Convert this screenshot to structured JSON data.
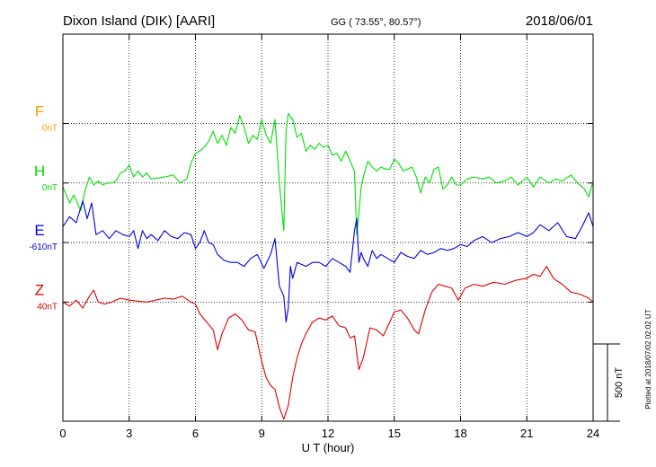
{
  "header": {
    "station": "Dixon Island (DIK)  [AARI]",
    "coords": "GG ( 73.55°,  80.57°)",
    "date": "2018/06/01"
  },
  "footer": {
    "plotted_note": "Plotted at 2018/07/02 02:02 UT"
  },
  "colors": {
    "F": "#f5a000",
    "H": "#00e000",
    "E": "#0000e0",
    "Z": "#e00000",
    "axis": "#000000",
    "grid": "#000000"
  },
  "chart_data": {
    "type": "line",
    "title": "Dixon Island (DIK)  [AARI]",
    "xlabel": "U T (hour)",
    "xlim": [
      0,
      24
    ],
    "xticks": [
      0,
      3,
      6,
      9,
      12,
      15,
      18,
      21,
      24
    ],
    "xtick_labels": [
      "0",
      "3",
      "6",
      "9",
      "12",
      "15",
      "18",
      "21",
      "24"
    ],
    "grid": true,
    "scale_bar_label": "500 nT",
    "scale_bar_nT": 500,
    "ylim": [
      -400,
      1550
    ],
    "series": [
      {
        "name": "F",
        "baseline_label": "0nT",
        "baseline_nT": 1100,
        "x": [],
        "y": []
      },
      {
        "name": "H",
        "baseline_label": "0nT",
        "baseline_nT": 800,
        "x": [
          0,
          0.3,
          0.5,
          0.8,
          1.0,
          1.2,
          1.4,
          1.6,
          1.8,
          2.0,
          2.2,
          2.4,
          2.6,
          2.8,
          3.0,
          3.2,
          3.4,
          3.6,
          3.8,
          4.0,
          4.3,
          4.6,
          5.0,
          5.3,
          5.6,
          5.8,
          6.0,
          6.2,
          6.4,
          6.6,
          6.8,
          7.0,
          7.2,
          7.4,
          7.6,
          7.8,
          8.0,
          8.2,
          8.4,
          8.6,
          8.8,
          9.0,
          9.2,
          9.4,
          9.6,
          9.8,
          10.0,
          10.1,
          10.2,
          10.4,
          10.6,
          10.8,
          11.0,
          11.2,
          11.4,
          11.6,
          11.8,
          12.0,
          12.2,
          12.4,
          12.6,
          12.8,
          13.0,
          13.2,
          13.3,
          13.4,
          13.5,
          13.6,
          13.8,
          14.0,
          14.2,
          14.4,
          14.6,
          14.8,
          15.0,
          15.2,
          15.4,
          15.6,
          15.8,
          16.0,
          16.2,
          16.4,
          16.6,
          16.8,
          17.0,
          17.2,
          17.4,
          17.6,
          17.8,
          18.0,
          18.3,
          18.6,
          19.0,
          19.3,
          19.6,
          20.0,
          20.3,
          20.6,
          21.0,
          21.3,
          21.6,
          22.0,
          22.3,
          22.6,
          23.0,
          23.3,
          23.6,
          23.8,
          24.0
        ],
        "y": [
          780,
          700,
          740,
          660,
          760,
          830,
          790,
          810,
          790,
          800,
          800,
          810,
          850,
          860,
          890,
          830,
          860,
          830,
          850,
          820,
          825,
          830,
          840,
          800,
          820,
          900,
          950,
          960,
          980,
          1010,
          1060,
          1000,
          1040,
          990,
          1080,
          1050,
          1140,
          1080,
          1000,
          1040,
          1020,
          1120,
          1040,
          1000,
          1120,
          800,
          560,
          1060,
          1150,
          1120,
          1030,
          1050,
          960,
          990,
          970,
          1000,
          980,
          990,
          940,
          950,
          910,
          960,
          910,
          860,
          540,
          650,
          780,
          830,
          910,
          880,
          860,
          880,
          870,
          870,
          920,
          900,
          860,
          870,
          880,
          830,
          750,
          830,
          800,
          870,
          880,
          770,
          790,
          830,
          790,
          790,
          820,
          830,
          820,
          830,
          800,
          810,
          830,
          790,
          830,
          780,
          830,
          800,
          820,
          810,
          840,
          800,
          770,
          730,
          810
        ]
      },
      {
        "name": "E",
        "baseline_label": "-610nT",
        "baseline_nT": 500,
        "x": [
          0,
          0.3,
          0.6,
          0.9,
          1.1,
          1.3,
          1.5,
          1.8,
          2.1,
          2.4,
          2.7,
          3.0,
          3.2,
          3.4,
          3.6,
          3.8,
          4.0,
          4.3,
          4.6,
          4.9,
          5.2,
          5.5,
          5.8,
          6.0,
          6.2,
          6.4,
          6.6,
          6.8,
          7.0,
          7.3,
          7.6,
          7.9,
          8.2,
          8.5,
          8.8,
          9.1,
          9.4,
          9.6,
          9.8,
          10.0,
          10.1,
          10.2,
          10.3,
          10.4,
          10.6,
          10.8,
          11.0,
          11.3,
          11.6,
          11.9,
          12.2,
          12.5,
          12.8,
          13.0,
          13.2,
          13.3,
          13.4,
          13.5,
          13.6,
          13.8,
          14.0,
          14.2,
          14.4,
          14.7,
          15.0,
          15.3,
          15.6,
          15.9,
          16.2,
          16.5,
          16.8,
          17.1,
          17.4,
          17.7,
          18.0,
          18.3,
          18.6,
          19.0,
          19.4,
          19.8,
          20.2,
          20.6,
          21.0,
          21.3,
          21.6,
          22.0,
          22.4,
          22.8,
          23.2,
          23.5,
          23.8,
          24.0
        ],
        "y": [
          580,
          630,
          600,
          710,
          620,
          700,
          540,
          560,
          520,
          560,
          540,
          530,
          560,
          470,
          560,
          520,
          540,
          510,
          560,
          530,
          520,
          550,
          540,
          470,
          500,
          560,
          500,
          490,
          440,
          410,
          400,
          400,
          380,
          420,
          440,
          370,
          440,
          520,
          280,
          230,
          100,
          170,
          380,
          320,
          400,
          390,
          380,
          400,
          400,
          380,
          420,
          400,
          380,
          350,
          560,
          620,
          400,
          450,
          420,
          380,
          460,
          420,
          440,
          420,
          400,
          450,
          430,
          420,
          460,
          440,
          450,
          470,
          460,
          470,
          490,
          480,
          510,
          530,
          500,
          520,
          530,
          550,
          530,
          550,
          590,
          560,
          600,
          530,
          520,
          580,
          650,
          580
        ]
      },
      {
        "name": "Z",
        "baseline_label": "40nT",
        "baseline_nT": 200,
        "x": [
          0,
          0.3,
          0.6,
          0.9,
          1.2,
          1.4,
          1.6,
          1.9,
          2.2,
          2.6,
          3.0,
          3.4,
          3.8,
          4.2,
          4.6,
          5.0,
          5.4,
          5.8,
          6.0,
          6.2,
          6.5,
          6.8,
          7.0,
          7.2,
          7.5,
          7.8,
          8.1,
          8.4,
          8.7,
          9.0,
          9.2,
          9.4,
          9.6,
          9.8,
          10.0,
          10.2,
          10.4,
          10.6,
          10.8,
          11.0,
          11.3,
          11.6,
          11.9,
          12.2,
          12.5,
          12.8,
          13.0,
          13.2,
          13.4,
          13.6,
          13.9,
          14.2,
          14.5,
          14.8,
          15.0,
          15.3,
          15.6,
          15.9,
          16.1,
          16.4,
          16.7,
          17.0,
          17.3,
          17.6,
          17.9,
          18.2,
          18.6,
          19.0,
          19.5,
          20.0,
          20.5,
          21.0,
          21.3,
          21.6,
          21.9,
          22.2,
          22.6,
          23.0,
          23.4,
          23.8,
          24.0
        ],
        "y": [
          200,
          180,
          210,
          170,
          230,
          260,
          200,
          190,
          200,
          220,
          210,
          205,
          200,
          210,
          220,
          215,
          230,
          200,
          190,
          140,
          100,
          60,
          -40,
          40,
          120,
          140,
          110,
          60,
          50,
          -100,
          -180,
          -220,
          -240,
          -330,
          -390,
          -320,
          -180,
          -80,
          -10,
          40,
          100,
          120,
          110,
          130,
          80,
          70,
          20,
          30,
          -140,
          -80,
          70,
          60,
          30,
          100,
          150,
          160,
          120,
          60,
          40,
          160,
          250,
          290,
          280,
          270,
          210,
          270,
          290,
          280,
          300,
          290,
          310,
          320,
          340,
          330,
          380,
          320,
          290,
          250,
          240,
          220,
          200
        ]
      }
    ]
  }
}
